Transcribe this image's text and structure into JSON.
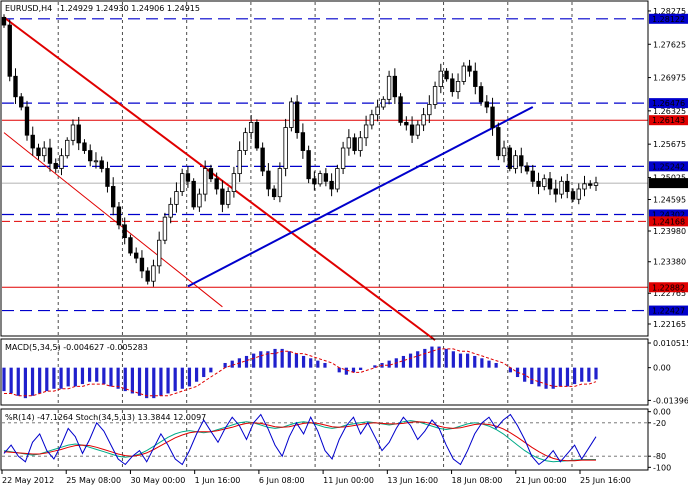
{
  "chart_data": {
    "type": "candlestick",
    "main": {
      "symbol_header": "EURUSD,H4",
      "ohlc_header": "1.24929 1.24930 1.24906 1.24915",
      "ylim": [
        1.2195,
        1.2845
      ],
      "y_ticks": [
        "1.28275",
        "1.27625",
        "1.26975",
        "1.26325",
        "1.25675",
        "1.25025",
        "1.24595",
        "1.23980",
        "1.23380",
        "1.22765",
        "1.22165"
      ],
      "level_labels": [
        {
          "value": 1.28122,
          "label": "1.28122",
          "style": "dash-blue",
          "bg": "#0000cc"
        },
        {
          "value": 1.26476,
          "label": "1.26476",
          "style": "dash-blue",
          "bg": "#0000cc"
        },
        {
          "value": 1.26143,
          "label": "1.26143",
          "style": "solid-red",
          "bg": "#e00000"
        },
        {
          "value": 1.25242,
          "label": "1.25242",
          "style": "dash-blue",
          "bg": "#0000cc"
        },
        {
          "value": 1.24915,
          "label": "1.24915",
          "style": "price",
          "bg": "#000000"
        },
        {
          "value": 1.24302,
          "label": "1.24302",
          "style": "dash-blue",
          "bg": "#0000cc"
        },
        {
          "value": 1.24168,
          "label": "1.24168",
          "style": "dash-red",
          "bg": "#e00000"
        },
        {
          "value": 1.22882,
          "label": "1.22882",
          "style": "solid-red",
          "bg": "#e00000"
        },
        {
          "value": 1.22427,
          "label": "1.22427",
          "style": "dash-blue",
          "bg": "#0000cc"
        }
      ],
      "close_path": [
        1.28,
        1.27,
        1.266,
        1.264,
        1.2585,
        1.256,
        1.2545,
        1.256,
        1.253,
        1.252,
        1.2545,
        1.2575,
        1.2605,
        1.257,
        1.2555,
        1.2535,
        1.2535,
        1.252,
        1.2485,
        1.2445,
        1.241,
        1.2385,
        1.2355,
        1.2345,
        1.232,
        1.23,
        1.233,
        1.238,
        1.2425,
        1.245,
        1.2475,
        1.251,
        1.2495,
        1.2445,
        1.247,
        1.252,
        1.25,
        1.248,
        1.245,
        1.2475,
        1.251,
        1.2555,
        1.259,
        1.261,
        1.256,
        1.2515,
        1.248,
        1.2465,
        1.252,
        1.26,
        1.265,
        1.259,
        1.2555,
        1.25,
        1.249,
        1.251,
        1.2495,
        1.248,
        1.252,
        1.256,
        1.258,
        1.2555,
        1.258,
        1.2605,
        1.2625,
        1.264,
        1.2655,
        1.27,
        1.266,
        1.261,
        1.2605,
        1.2585,
        1.2605,
        1.2625,
        1.2645,
        1.268,
        1.271,
        1.2695,
        1.267,
        1.269,
        1.272,
        1.271,
        1.268,
        1.265,
        1.264,
        1.26,
        1.2545,
        1.256,
        1.252,
        1.2545,
        1.2525,
        1.2515,
        1.2495,
        1.2485,
        1.25,
        1.248,
        1.247,
        1.2495,
        1.2475,
        1.246,
        1.248,
        1.249,
        1.2487,
        1.2492
      ],
      "x_tick_labels": [
        "22 May 2012",
        "25 May 08:00",
        "30 May 00:00",
        "1 Jun 16:00",
        "6 Jun 08:00",
        "11 Jun 00:00",
        "13 Jun 16:00",
        "18 Jun 08:00",
        "21 Jun 00:00",
        "25 Jun 16:00"
      ],
      "vgrid_after_labels": [
        1,
        2,
        3,
        4,
        5,
        6,
        7,
        8,
        9
      ],
      "trendlines": [
        {
          "color": "#e00000",
          "width": 2,
          "from": [
            0,
            1.2815
          ],
          "to": [
            75,
            1.2185
          ]
        },
        {
          "color": "#e00000",
          "width": 1,
          "from": [
            0,
            1.259
          ],
          "to": [
            38,
            1.225
          ]
        },
        {
          "color": "#0000cc",
          "width": 2,
          "from": [
            32,
            1.229
          ],
          "to": [
            92,
            1.264
          ]
        }
      ]
    },
    "macd": {
      "header": "MACD(5,34,5) -0.004627 -0.005283",
      "y_ticks": [
        "0.010515",
        "0.00",
        "-0.013964"
      ],
      "ylim": [
        -0.0155,
        0.0118
      ],
      "histogram": [
        -0.01,
        -0.011,
        -0.012,
        -0.013,
        -0.012,
        -0.011,
        -0.01,
        -0.009,
        -0.009,
        -0.008,
        -0.008,
        -0.007,
        -0.006,
        -0.006,
        -0.007,
        -0.008,
        -0.009,
        -0.01,
        -0.011,
        -0.012,
        -0.013,
        -0.013,
        -0.012,
        -0.011,
        -0.01,
        -0.009,
        -0.008,
        -0.006,
        -0.004,
        -0.002,
        0.0,
        0.002,
        0.003,
        0.004,
        0.005,
        0.006,
        0.007,
        0.007,
        0.008,
        0.008,
        0.007,
        0.006,
        0.005,
        0.004,
        0.003,
        0.002,
        0.0,
        -0.002,
        -0.003,
        -0.002,
        -0.001,
        0.0,
        0.001,
        0.002,
        0.003,
        0.004,
        0.005,
        0.006,
        0.007,
        0.008,
        0.009,
        0.009,
        0.008,
        0.007,
        0.006,
        0.006,
        0.005,
        0.004,
        0.003,
        0.002,
        0.0,
        -0.002,
        -0.004,
        -0.006,
        -0.007,
        -0.008,
        -0.009,
        -0.009,
        -0.008,
        -0.008,
        -0.007,
        -0.006,
        -0.006,
        -0.005
      ],
      "signal": [
        -0.011,
        -0.011,
        -0.012,
        -0.012,
        -0.012,
        -0.011,
        -0.01,
        -0.01,
        -0.009,
        -0.009,
        -0.008,
        -0.008,
        -0.007,
        -0.007,
        -0.007,
        -0.008,
        -0.008,
        -0.009,
        -0.01,
        -0.011,
        -0.012,
        -0.012,
        -0.012,
        -0.012,
        -0.011,
        -0.01,
        -0.009,
        -0.008,
        -0.006,
        -0.004,
        -0.002,
        0.0,
        0.001,
        0.002,
        0.003,
        0.004,
        0.005,
        0.006,
        0.006,
        0.007,
        0.007,
        0.006,
        0.006,
        0.005,
        0.004,
        0.003,
        0.002,
        0.0,
        -0.001,
        -0.002,
        -0.002,
        -0.001,
        0.0,
        0.001,
        0.001,
        0.002,
        0.003,
        0.004,
        0.005,
        0.006,
        0.007,
        0.008,
        0.008,
        0.008,
        0.007,
        0.007,
        0.006,
        0.005,
        0.004,
        0.003,
        0.002,
        0.0,
        -0.002,
        -0.003,
        -0.005,
        -0.006,
        -0.007,
        -0.008,
        -0.008,
        -0.008,
        -0.008,
        -0.007,
        -0.007,
        -0.006
      ]
    },
    "oscillator": {
      "header": "%R(14) -47.1264 Stoch(34,5,13) 13.3844 12.0097",
      "y_ticks": [
        "0.00",
        "-20",
        "-80",
        "-100"
      ],
      "ylim": [
        -103,
        3
      ],
      "williams_r": [
        -75,
        -60,
        -80,
        -90,
        -55,
        -40,
        -70,
        -85,
        -60,
        -30,
        -45,
        -75,
        -50,
        -20,
        -35,
        -60,
        -85,
        -95,
        -80,
        -70,
        -90,
        -65,
        -40,
        -60,
        -85,
        -95,
        -70,
        -40,
        -15,
        -35,
        -55,
        -30,
        -10,
        -25,
        -50,
        -20,
        -5,
        -30,
        -60,
        -80,
        -45,
        -20,
        -40,
        -10,
        -35,
        -70,
        -85,
        -50,
        -25,
        -10,
        -40,
        -20,
        -45,
        -70,
        -55,
        -30,
        -10,
        -25,
        -50,
        -35,
        -15,
        -30,
        -60,
        -85,
        -95,
        -70,
        -40,
        -20,
        -10,
        -30,
        -15,
        -5,
        -25,
        -50,
        -80,
        -95,
        -85,
        -70,
        -90,
        -75,
        -60,
        -85,
        -65,
        -45
      ],
      "stoch_main": [
        -70,
        -72,
        -74,
        -76,
        -78,
        -76,
        -72,
        -68,
        -64,
        -60,
        -58,
        -60,
        -64,
        -68,
        -72,
        -76,
        -80,
        -82,
        -80,
        -76,
        -70,
        -62,
        -54,
        -46,
        -40,
        -36,
        -34,
        -36,
        -38,
        -36,
        -32,
        -28,
        -24,
        -20,
        -18,
        -20,
        -24,
        -28,
        -30,
        -28,
        -24,
        -20,
        -18,
        -20,
        -24,
        -28,
        -30,
        -28,
        -24,
        -22,
        -20,
        -18,
        -20,
        -22,
        -24,
        -22,
        -18,
        -16,
        -18,
        -22,
        -26,
        -30,
        -32,
        -30,
        -26,
        -22,
        -20,
        -22,
        -26,
        -32,
        -40,
        -50,
        -60,
        -70,
        -78,
        -84,
        -88,
        -90,
        -89,
        -88,
        -87,
        -86,
        -86,
        -86
      ],
      "stoch_signal": [
        -72,
        -73,
        -74,
        -75,
        -76,
        -76,
        -74,
        -71,
        -68,
        -64,
        -61,
        -60,
        -61,
        -64,
        -68,
        -72,
        -76,
        -79,
        -80,
        -78,
        -74,
        -68,
        -61,
        -54,
        -47,
        -42,
        -38,
        -36,
        -36,
        -36,
        -34,
        -31,
        -28,
        -24,
        -21,
        -20,
        -21,
        -24,
        -27,
        -28,
        -27,
        -24,
        -21,
        -20,
        -21,
        -24,
        -27,
        -28,
        -27,
        -25,
        -23,
        -21,
        -20,
        -21,
        -22,
        -22,
        -21,
        -19,
        -18,
        -19,
        -22,
        -26,
        -29,
        -30,
        -29,
        -26,
        -23,
        -22,
        -23,
        -26,
        -31,
        -38,
        -46,
        -55,
        -64,
        -72,
        -79,
        -84,
        -87,
        -88,
        -88,
        -87,
        -87,
        -87
      ]
    },
    "colors": {
      "bull_candle": "#ffffff",
      "bear_candle": "#000000",
      "macd_histogram": "#2020cc",
      "macd_signal": "#e00000",
      "williams": "#0000cc",
      "stoch_main": "#00aa88",
      "stoch_signal": "#e00000",
      "grid": "#000000",
      "label_text": "#ffffff"
    }
  }
}
